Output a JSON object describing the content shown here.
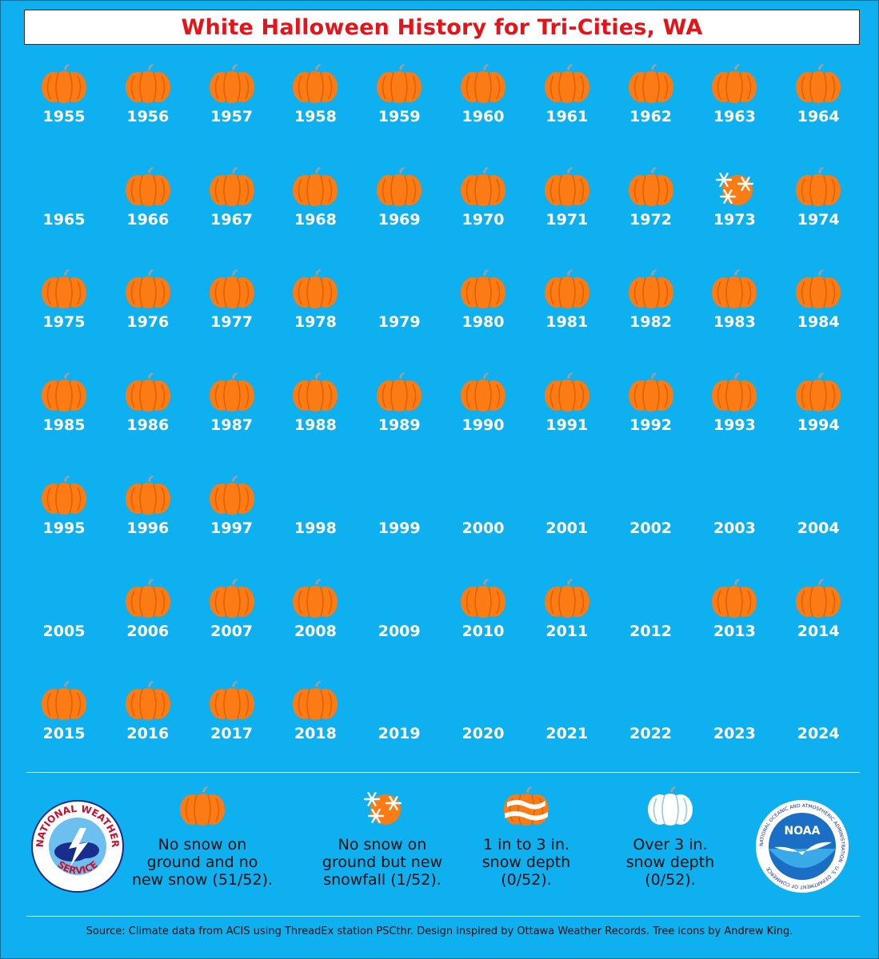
{
  "title": "White Halloween History for Tri-Cities, WA",
  "years": [
    {
      "year": "1955",
      "icon": "pumpkin"
    },
    {
      "year": "1956",
      "icon": "pumpkin"
    },
    {
      "year": "1957",
      "icon": "pumpkin"
    },
    {
      "year": "1958",
      "icon": "pumpkin"
    },
    {
      "year": "1959",
      "icon": "pumpkin"
    },
    {
      "year": "1960",
      "icon": "pumpkin"
    },
    {
      "year": "1961",
      "icon": "pumpkin"
    },
    {
      "year": "1962",
      "icon": "pumpkin"
    },
    {
      "year": "1963",
      "icon": "pumpkin"
    },
    {
      "year": "1964",
      "icon": "pumpkin"
    },
    {
      "year": "1965",
      "icon": "none"
    },
    {
      "year": "1966",
      "icon": "pumpkin"
    },
    {
      "year": "1967",
      "icon": "pumpkin"
    },
    {
      "year": "1968",
      "icon": "pumpkin"
    },
    {
      "year": "1969",
      "icon": "pumpkin"
    },
    {
      "year": "1970",
      "icon": "pumpkin"
    },
    {
      "year": "1971",
      "icon": "pumpkin"
    },
    {
      "year": "1972",
      "icon": "pumpkin"
    },
    {
      "year": "1973",
      "icon": "snowfall-pumpkin"
    },
    {
      "year": "1974",
      "icon": "pumpkin"
    },
    {
      "year": "1975",
      "icon": "pumpkin"
    },
    {
      "year": "1976",
      "icon": "pumpkin"
    },
    {
      "year": "1977",
      "icon": "pumpkin"
    },
    {
      "year": "1978",
      "icon": "pumpkin"
    },
    {
      "year": "1979",
      "icon": "none"
    },
    {
      "year": "1980",
      "icon": "pumpkin"
    },
    {
      "year": "1981",
      "icon": "pumpkin"
    },
    {
      "year": "1982",
      "icon": "pumpkin"
    },
    {
      "year": "1983",
      "icon": "pumpkin"
    },
    {
      "year": "1984",
      "icon": "pumpkin"
    },
    {
      "year": "1985",
      "icon": "pumpkin"
    },
    {
      "year": "1986",
      "icon": "pumpkin"
    },
    {
      "year": "1987",
      "icon": "pumpkin"
    },
    {
      "year": "1988",
      "icon": "pumpkin"
    },
    {
      "year": "1989",
      "icon": "pumpkin"
    },
    {
      "year": "1990",
      "icon": "pumpkin"
    },
    {
      "year": "1991",
      "icon": "pumpkin"
    },
    {
      "year": "1992",
      "icon": "pumpkin"
    },
    {
      "year": "1993",
      "icon": "pumpkin"
    },
    {
      "year": "1994",
      "icon": "pumpkin"
    },
    {
      "year": "1995",
      "icon": "pumpkin"
    },
    {
      "year": "1996",
      "icon": "pumpkin"
    },
    {
      "year": "1997",
      "icon": "pumpkin"
    },
    {
      "year": "1998",
      "icon": "none"
    },
    {
      "year": "1999",
      "icon": "none"
    },
    {
      "year": "2000",
      "icon": "none"
    },
    {
      "year": "2001",
      "icon": "none"
    },
    {
      "year": "2002",
      "icon": "none"
    },
    {
      "year": "2003",
      "icon": "none"
    },
    {
      "year": "2004",
      "icon": "none"
    },
    {
      "year": "2005",
      "icon": "none"
    },
    {
      "year": "2006",
      "icon": "pumpkin"
    },
    {
      "year": "2007",
      "icon": "pumpkin"
    },
    {
      "year": "2008",
      "icon": "pumpkin"
    },
    {
      "year": "2009",
      "icon": "none"
    },
    {
      "year": "2010",
      "icon": "pumpkin"
    },
    {
      "year": "2011",
      "icon": "pumpkin"
    },
    {
      "year": "2012",
      "icon": "none"
    },
    {
      "year": "2013",
      "icon": "pumpkin"
    },
    {
      "year": "2014",
      "icon": "pumpkin"
    },
    {
      "year": "2015",
      "icon": "pumpkin"
    },
    {
      "year": "2016",
      "icon": "pumpkin"
    },
    {
      "year": "2017",
      "icon": "pumpkin"
    },
    {
      "year": "2018",
      "icon": "pumpkin"
    },
    {
      "year": "2019",
      "icon": "none"
    },
    {
      "year": "2020",
      "icon": "none"
    },
    {
      "year": "2021",
      "icon": "none"
    },
    {
      "year": "2022",
      "icon": "none"
    },
    {
      "year": "2023",
      "icon": "none"
    },
    {
      "year": "2024",
      "icon": "none"
    }
  ],
  "legend": [
    {
      "icon": "pumpkin",
      "text": "No snow on\nground and no\nnew snow (51/52)."
    },
    {
      "icon": "snowfall-pumpkin",
      "text": "No snow on\nground but new\nsnowfall (1/52)."
    },
    {
      "icon": "striped-snow-pumpkin",
      "text": "1 in to 3 in.\nsnow depth\n(0/52)."
    },
    {
      "icon": "white-pumpkin",
      "text": "Over 3 in.\nsnow depth\n(0/52)."
    }
  ],
  "logos": {
    "nws": {
      "top_text": "NATIONAL WEATHER",
      "bottom_text": "SERVICE"
    },
    "noaa": {
      "center_text": "NOAA",
      "ring_text": "NATIONAL OCEANIC AND ATMOSPHERIC ADMINISTRATION · U.S. DEPARTMENT OF COMMERCE"
    }
  },
  "source": "Source: Climate data from ACIS using ThreadEx station PSCthr. Design inspired by Ottawa Weather Records. Tree icons by Andrew King.",
  "colors": {
    "background": "#0fb0f0",
    "pumpkin": "#fb7c14",
    "title": "#e4141b"
  }
}
